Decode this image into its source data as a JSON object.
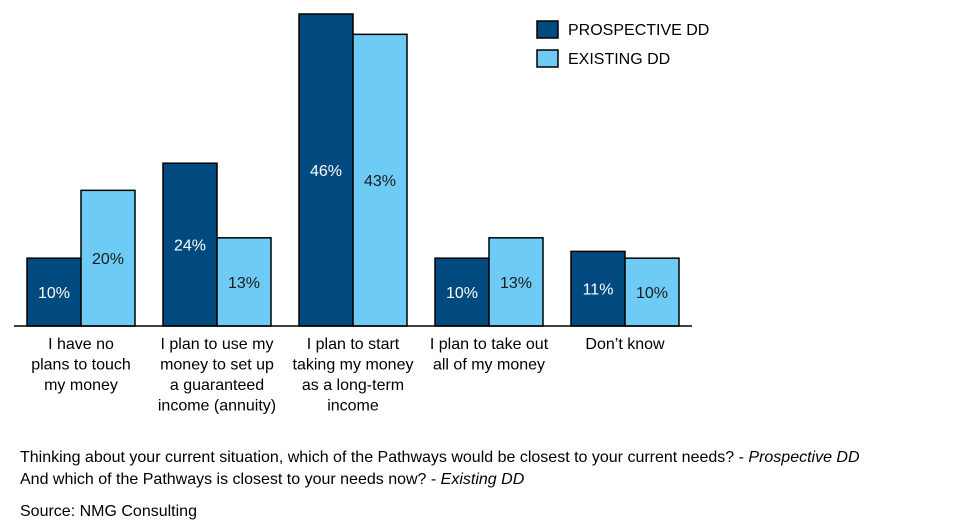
{
  "chart_data": {
    "type": "bar",
    "categories": [
      [
        "I have no",
        "plans to touch",
        "my money"
      ],
      [
        "I plan to use my",
        "money to set up",
        "a guaranteed",
        "income (annuity)"
      ],
      [
        "I plan to start",
        "taking my money",
        "as a long-term",
        "income"
      ],
      [
        "I plan to take out",
        "all of my money"
      ],
      [
        "Don’t know"
      ]
    ],
    "series": [
      {
        "name": "PROSPECTIVE DD",
        "color": "#004a80",
        "label_color": "#ffffff",
        "values": [
          10,
          24,
          46,
          10,
          11
        ]
      },
      {
        "name": "EXISTING DD",
        "color": "#6ecbf5",
        "label_color": "#1a1a1a",
        "values": [
          20,
          13,
          43,
          13,
          10
        ]
      }
    ],
    "value_suffix": "%",
    "ylim": [
      0,
      46
    ],
    "grid": false,
    "legend": "top-right"
  },
  "footnotes": {
    "line1_text": "Thinking about your current situation, which of the Pathways would be closest to your current needs? - ",
    "line1_em": "Prospective DD",
    "line2_text": "And which of the Pathways is closest to your needs now? - ",
    "line2_em": "Existing DD",
    "source": "Source: NMG Consulting"
  }
}
